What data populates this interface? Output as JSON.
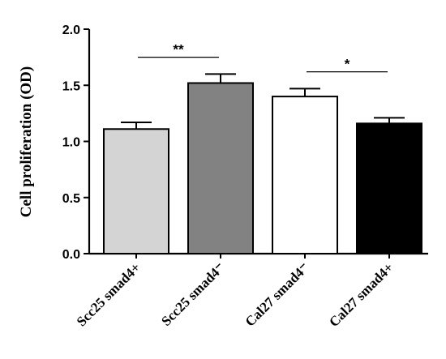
{
  "chart_data": {
    "type": "bar",
    "title": "",
    "xlabel": "",
    "ylabel": "Cell proliferation (OD)",
    "ylim": [
      0,
      2.0
    ],
    "yticks": [
      "0.0",
      "0.5",
      "1.0",
      "1.5",
      "2.0"
    ],
    "ytick_values": [
      0,
      0.5,
      1.0,
      1.5,
      2.0
    ],
    "categories": [
      "Scc25 smad4+",
      "Scc25 smad4⁻",
      "Cal27 smad4⁻",
      "Cal27 smad4+"
    ],
    "values": [
      1.11,
      1.52,
      1.4,
      1.16
    ],
    "errors": [
      0.06,
      0.08,
      0.07,
      0.05
    ],
    "bar_colors": [
      "#d4d4d4",
      "#828282",
      "#ffffff",
      "#000000"
    ],
    "significance": [
      {
        "from": 0,
        "to": 1,
        "label": "**",
        "y": 1.75
      },
      {
        "from": 2,
        "to": 3,
        "label": "*",
        "y": 1.62
      }
    ],
    "grid": false,
    "legend": "none"
  }
}
